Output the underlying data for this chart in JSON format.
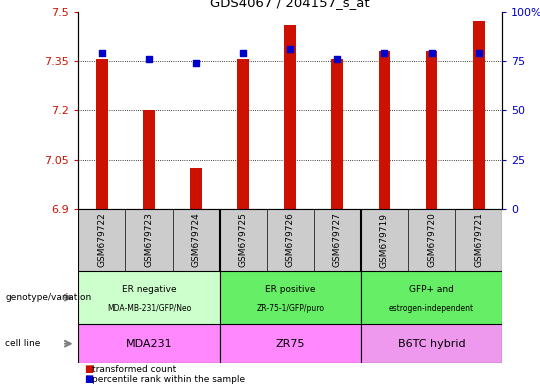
{
  "title": "GDS4067 / 204157_s_at",
  "samples": [
    "GSM679722",
    "GSM679723",
    "GSM679724",
    "GSM679725",
    "GSM679726",
    "GSM679727",
    "GSM679719",
    "GSM679720",
    "GSM679721"
  ],
  "bar_values": [
    7.355,
    7.2,
    7.025,
    7.355,
    7.46,
    7.355,
    7.38,
    7.38,
    7.47
  ],
  "dot_values": [
    79,
    76,
    74,
    79,
    81,
    76,
    79,
    79,
    79
  ],
  "ylim_left": [
    6.9,
    7.5
  ],
  "ylim_right": [
    0,
    100
  ],
  "yticks_left": [
    6.9,
    7.05,
    7.2,
    7.35,
    7.5
  ],
  "yticks_right": [
    0,
    25,
    50,
    75,
    100
  ],
  "ytick_labels_right": [
    "0",
    "25",
    "50",
    "75",
    "100%"
  ],
  "bar_color": "#CC1100",
  "dot_color": "#0000CC",
  "baseline": 6.9,
  "group_colors": [
    "#ccffcc",
    "#66ee66",
    "#66ee66"
  ],
  "group_labels": [
    "ER negative\nMDA-MB-231/GFP/Neo",
    "ER positive\nZR-75-1/GFP/puro",
    "GFP+ and\nestrogen-independent"
  ],
  "group_ranges": [
    [
      0,
      2
    ],
    [
      3,
      5
    ],
    [
      6,
      8
    ]
  ],
  "cell_labels": [
    "MDA231",
    "ZR75",
    "B6TC hybrid"
  ],
  "cell_color": "#ff88ff",
  "cell_color_last": "#ee99ee",
  "legend_bar_label": "transformed count",
  "legend_dot_label": "percentile rank within the sample",
  "left_label_genotype": "genotype/variation",
  "left_label_cell": "cell line",
  "grid_lines": [
    7.05,
    7.2,
    7.35
  ],
  "xtick_bg": "#cccccc",
  "fig_width": 5.4,
  "fig_height": 3.84,
  "dpi": 100
}
